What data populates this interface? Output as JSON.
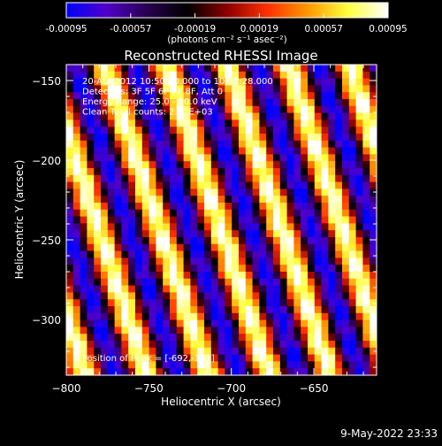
{
  "colorbar": {
    "tick_labels": [
      "-0.00095",
      "-0.00057",
      "-0.00019",
      "0.00019",
      "0.00057",
      "0.00095"
    ],
    "tick_values": [
      -0.00095,
      -0.00057,
      -0.00019,
      0.00019,
      0.00057,
      0.00095
    ],
    "range": [
      -0.00095,
      0.00095
    ],
    "units_label": "(photons cm⁻² s⁻¹ asec⁻²)",
    "colors": [
      "#0000ff",
      "#5000c8",
      "#280050",
      "#000000",
      "#8c0000",
      "#ff3000",
      "#ff9800",
      "#ffff40",
      "#ffffff"
    ]
  },
  "chart_data": {
    "type": "heatmap",
    "title": "Reconstructed RHESSI Image",
    "xlabel": "Heliocentric X (arcsec)",
    "ylabel": "Heliocentric Y (arcsec)",
    "xlim": [
      -800,
      -612
    ],
    "ylim": [
      -335,
      -140
    ],
    "x_ticks": [
      -800,
      -750,
      -700,
      -650
    ],
    "y_ticks": [
      -150,
      -200,
      -250,
      -300
    ],
    "x_tick_labels": [
      "−800",
      "−750",
      "−700",
      "−650"
    ],
    "y_tick_labels": [
      "−150",
      "−200",
      "−250",
      "−300"
    ],
    "annotations": [
      "20-Apr-2012 10:50:20.000 to 10:52:28.000",
      "Detectors: 3F 5F 6F 7F 8F, Att 0",
      "Energy Range: 25.0 - 50.0 keV",
      "Clean    Total counts: 2.42E+03"
    ],
    "peak_label": "Position of Peak = [-692,-173]",
    "peak": [
      -692,
      -173
    ],
    "pattern": {
      "description_free": true,
      "stripe_period_arcsec": 37,
      "stripe_slope_dx_per_dy": -0.32
    }
  },
  "footer": {
    "timestamp": "9-May-2022 23:33"
  }
}
